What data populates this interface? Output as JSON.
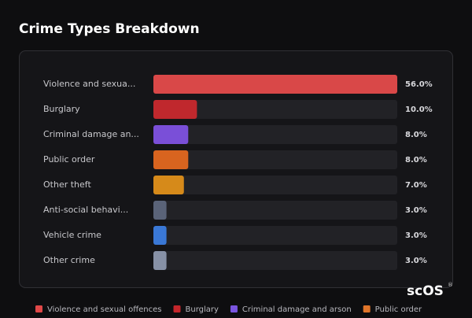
{
  "chart_data": {
    "type": "bar",
    "title": "Crime Types Breakdown",
    "categories": [
      "Violence and sexua...",
      "Burglary",
      "Criminal damage an...",
      "Public order",
      "Other theft",
      "Anti-social behavi...",
      "Vehicle crime",
      "Other crime"
    ],
    "values": [
      56,
      10,
      8,
      8,
      7,
      3,
      3,
      3
    ],
    "value_labels": [
      "56.0%",
      "10.0%",
      "8.0%",
      "8.0%",
      "7.0%",
      "3.0%",
      "3.0%",
      "3.0%"
    ],
    "colors": [
      "#d94848",
      "#c0282d",
      "#7a4fd8",
      "#d8641f",
      "#d68a1a",
      "#5a6378",
      "#3a78d6",
      "#8791a6"
    ],
    "xlim": [
      0,
      56
    ],
    "legend": [
      {
        "name": "Violence and sexual offences",
        "color": "#e04848"
      },
      {
        "name": "Burglary",
        "color": "#c4262b"
      },
      {
        "name": "Criminal damage and arson",
        "color": "#7a55e0"
      },
      {
        "name": "Public order",
        "color": "#e0752a"
      }
    ],
    "logo": "scOS",
    "logo_mark": "®"
  }
}
